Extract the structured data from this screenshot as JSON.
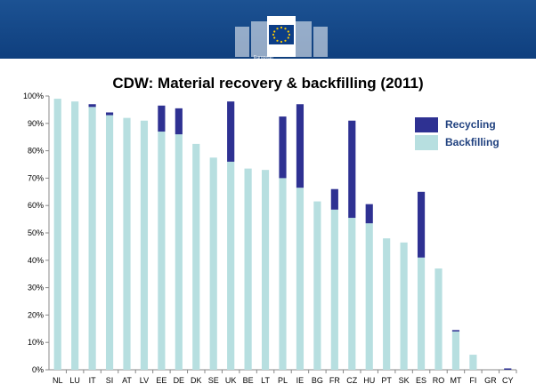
{
  "header": {
    "logo_line1": "European",
    "logo_line2": "Commission"
  },
  "colors": {
    "recycling": "#2e3192",
    "backfilling": "#b7dfe0",
    "header": "#15498a",
    "legend_text": "#20417f"
  },
  "chart_data": {
    "type": "bar",
    "stacked": true,
    "title": "CDW: Material recovery & backfilling (2011)",
    "categories": [
      "NL",
      "LU",
      "IT",
      "SI",
      "AT",
      "LV",
      "EE",
      "DE",
      "DK",
      "SE",
      "UK",
      "BE",
      "LT",
      "PL",
      "IE",
      "BG",
      "FR",
      "CZ",
      "HU",
      "PT",
      "SK",
      "ES",
      "RO",
      "MT",
      "FI",
      "GR",
      "CY"
    ],
    "series": [
      {
        "name": "Backfilling",
        "values": [
          99,
          98,
          96,
          93,
          92,
          91,
          87,
          86,
          82.5,
          77.5,
          76,
          73.5,
          73,
          70,
          66.5,
          61.5,
          58.5,
          55.5,
          53.5,
          48,
          46.5,
          41,
          37,
          14,
          5.5,
          0,
          0
        ]
      },
      {
        "name": "Recycling",
        "values": [
          0,
          0,
          1,
          1,
          0,
          0,
          9.5,
          9.5,
          0,
          0,
          22,
          0,
          0,
          22.5,
          30.5,
          0,
          7.5,
          35.5,
          7,
          0,
          0,
          24,
          0,
          0.5,
          0,
          0,
          0.5
        ]
      }
    ],
    "ylim": [
      0,
      100
    ],
    "yticks": [
      "0%",
      "10%",
      "20%",
      "30%",
      "40%",
      "50%",
      "60%",
      "70%",
      "80%",
      "90%",
      "100%"
    ],
    "legend": [
      "Recycling",
      "Backfilling"
    ],
    "legend_position": "top-right",
    "grid": false
  }
}
